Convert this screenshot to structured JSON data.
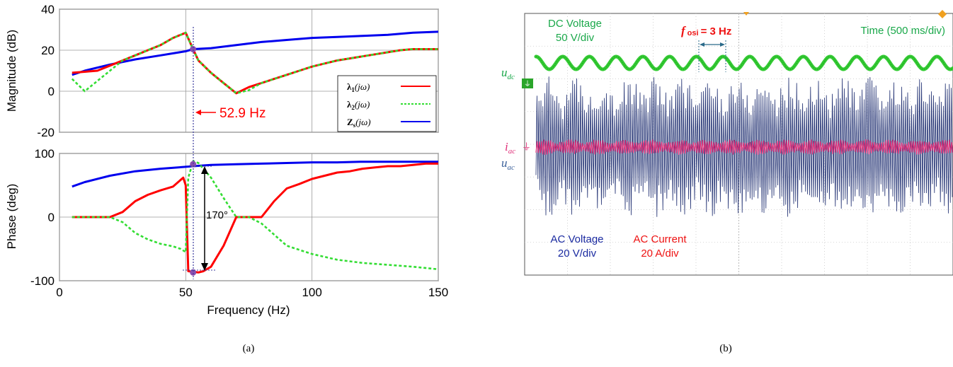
{
  "chart_data": [
    {
      "type": "line",
      "panel": "magnitude",
      "xlim": [
        0,
        150
      ],
      "ylim": [
        -20,
        40
      ],
      "xticks": [
        "0",
        "50",
        "100",
        "150"
      ],
      "yticks": [
        "-20",
        "0",
        "20",
        "40"
      ],
      "xlabel": "",
      "ylabel": "Magnitude (dB)",
      "grid": true,
      "legend_position": "bottom-right",
      "annotation": "52.9 Hz",
      "annotation_x": 52.9,
      "marker_point": [
        52.9,
        20.5
      ],
      "series": [
        {
          "name": "λ₁(jω)",
          "color": "#ff0000",
          "style": "solid",
          "x": [
            5,
            10,
            15,
            20,
            25,
            30,
            35,
            40,
            45,
            50,
            52.9,
            55,
            60,
            65,
            70,
            75,
            80,
            85,
            90,
            95,
            100,
            105,
            110,
            115,
            120,
            125,
            130,
            135,
            140,
            145,
            150
          ],
          "y": [
            9,
            9.5,
            10,
            12.5,
            15,
            17.5,
            20,
            22.5,
            26,
            28.5,
            20.5,
            15,
            9,
            4,
            -1,
            2,
            4,
            6,
            8,
            10,
            12,
            13.5,
            15,
            16,
            17,
            18,
            19,
            20,
            20.5,
            20.5,
            20.5
          ]
        },
        {
          "name": "λ₂(jω)",
          "color": "#33dd33",
          "style": "dashed",
          "x": [
            5,
            10,
            15,
            20,
            25,
            30,
            35,
            40,
            45,
            50,
            52.9,
            55,
            60,
            65,
            70,
            75,
            80,
            85,
            90,
            95,
            100,
            105,
            110,
            115,
            120,
            125,
            130,
            135,
            140,
            145,
            150
          ],
          "y": [
            6,
            0,
            5,
            10,
            15,
            17.5,
            20,
            22.5,
            26,
            28.5,
            20.5,
            15,
            9,
            4,
            -1,
            0.5,
            4,
            6,
            8,
            10,
            12,
            13.5,
            15,
            16,
            17,
            18,
            19,
            20,
            20.5,
            20.5,
            20.5
          ]
        },
        {
          "name": "Zₛ(jω)",
          "color": "#0000ee",
          "style": "solid",
          "x": [
            5,
            10,
            20,
            30,
            40,
            50,
            52.9,
            60,
            70,
            80,
            90,
            100,
            110,
            120,
            130,
            140,
            150
          ],
          "y": [
            8,
            10,
            13,
            15.5,
            17.5,
            19.5,
            20.5,
            21,
            22.5,
            24,
            25,
            26,
            26.5,
            27,
            27.5,
            28.5,
            29
          ]
        }
      ]
    },
    {
      "type": "line",
      "panel": "phase",
      "xlim": [
        0,
        150
      ],
      "ylim": [
        -100,
        100
      ],
      "xticks": [
        "0",
        "50",
        "100",
        "150"
      ],
      "yticks": [
        "-100",
        "0",
        "100"
      ],
      "xlabel": "Frequency (Hz)",
      "ylabel": "Phase (deg)",
      "grid": true,
      "annotation": "170°",
      "marker_points": [
        [
          52.9,
          83
        ],
        [
          52.9,
          -87
        ]
      ],
      "series": [
        {
          "name": "λ₁(jω)",
          "color": "#ff0000",
          "style": "solid",
          "x": [
            5,
            15,
            20,
            25,
            30,
            35,
            40,
            45,
            49,
            50,
            51,
            55,
            57,
            60,
            65,
            70,
            75,
            80,
            85,
            90,
            95,
            100,
            105,
            110,
            115,
            120,
            125,
            130,
            135,
            140,
            145,
            150
          ],
          "y": [
            0,
            0,
            0,
            8,
            25,
            35,
            42,
            48,
            62,
            50,
            -85,
            -87,
            -85,
            -78,
            -45,
            0,
            0,
            0,
            25,
            45,
            52,
            60,
            65,
            70,
            72,
            76,
            78,
            80,
            80,
            82,
            84,
            84
          ]
        },
        {
          "name": "λ₂(jω)",
          "color": "#33dd33",
          "style": "dashed",
          "x": [
            5,
            15,
            20,
            25,
            30,
            35,
            40,
            45,
            48,
            50,
            51,
            53,
            55,
            60,
            65,
            70,
            75,
            80,
            90,
            100,
            110,
            120,
            130,
            140,
            150
          ],
          "y": [
            0,
            0,
            0,
            -8,
            -25,
            -35,
            -42,
            -46,
            -50,
            -55,
            62,
            88,
            85,
            62,
            30,
            0,
            0,
            -10,
            -45,
            -58,
            -67,
            -72,
            -75,
            -78,
            -82
          ]
        },
        {
          "name": "Zₛ(jω)",
          "color": "#0000ee",
          "style": "solid",
          "x": [
            5,
            10,
            20,
            30,
            40,
            50,
            52.9,
            60,
            70,
            80,
            90,
            100,
            110,
            120,
            130,
            140,
            150
          ],
          "y": [
            48,
            55,
            65,
            72,
            76,
            79,
            80,
            82,
            83,
            84,
            85,
            86,
            86,
            87,
            87,
            87,
            87
          ]
        }
      ]
    },
    {
      "type": "line",
      "panel": "oscilloscope",
      "labels": {
        "dc_voltage": "DC Voltage",
        "dc_scale": "50 V/div",
        "f_osi": "f",
        "f_osi_sub": "osi",
        "f_osi_value": "= 3 Hz",
        "time": "Time (500 ms/div)",
        "u_dc": "u",
        "u_dc_sub": "dc",
        "i_ac": "i",
        "i_ac_sub": "ac",
        "u_ac": "u",
        "u_ac_sub": "ac",
        "ac_voltage": "AC Voltage",
        "ac_v_scale": "20 V/div",
        "ac_current": "AC Current",
        "ac_i_scale": "20 A/div"
      },
      "oscillation_frequency_hz": 3,
      "colors": {
        "dc": "#33cc33",
        "ac_voltage": "#1a2a6e",
        "ac_current": "#e0307a",
        "label_green": "#1aa84a",
        "label_blue": "#1a2aa0",
        "label_red": "#ee1111"
      }
    }
  ],
  "legend": [
    {
      "symbol": "λ",
      "sub": "1",
      "arg": "(jω)"
    },
    {
      "symbol": "λ",
      "sub": "2",
      "arg": "(jω)"
    },
    {
      "symbol": "Z",
      "sub": "s",
      "arg": "(jω)"
    }
  ],
  "captions": {
    "a": "(a)",
    "b": "(b)"
  }
}
